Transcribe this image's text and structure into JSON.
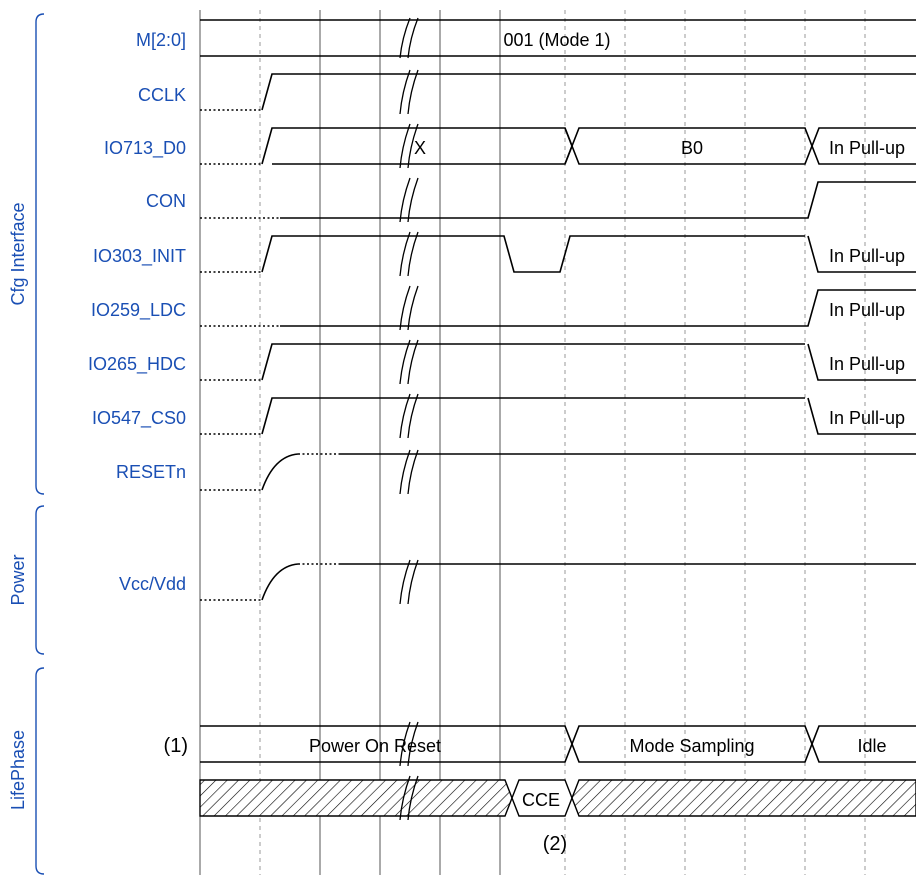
{
  "groups": {
    "cfg": "Cfg Interface",
    "power": "Power",
    "lifephase": "LifePhase"
  },
  "signals": {
    "m": "M[2:0]",
    "cclk": "CCLK",
    "io713": "IO713_D0",
    "con": "CON",
    "io303": "IO303_INIT",
    "io259": "IO259_LDC",
    "io265": "IO265_HDC",
    "io547": "IO547_CS0",
    "resetn": "RESETn",
    "vcc": "Vcc/Vdd"
  },
  "values": {
    "m_mode": "001 (Mode 1)",
    "io713_x": "X",
    "io713_b0": "B0",
    "pullup": "In Pull-up"
  },
  "phases": {
    "marker_1": "(1)",
    "power_on_reset": "Power On Reset",
    "mode_sampling": "Mode Sampling",
    "idle": "Idle",
    "cce": "CCE",
    "marker_2": "(2)"
  }
}
